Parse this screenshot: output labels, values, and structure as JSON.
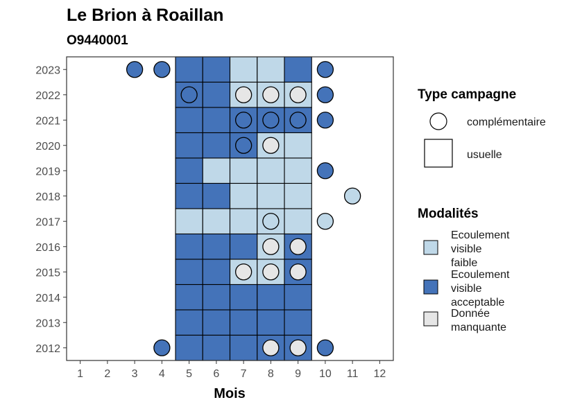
{
  "chart_data": {
    "type": "heatmap",
    "title": "Le Brion à Roaillan",
    "subtitle": "O9440001",
    "xlabel": "Mois",
    "ylabel": "",
    "x_ticks": [
      1,
      2,
      3,
      4,
      5,
      6,
      7,
      8,
      9,
      10,
      11,
      12
    ],
    "y_ticks": [
      2012,
      2013,
      2014,
      2015,
      2016,
      2017,
      2018,
      2019,
      2020,
      2021,
      2022,
      2023
    ],
    "xlim": [
      0.5,
      12.5
    ],
    "ylim": [
      2011.5,
      2023.5
    ],
    "colors": {
      "faible": "#bfd8e8",
      "acceptable": "#4473b9",
      "manquante": "#e6e6e6",
      "outline": "#000000",
      "panel_border": "#333333"
    },
    "legend_type": {
      "title": "Type campagne",
      "items": [
        {
          "label": "complémentaire",
          "shape": "circle"
        },
        {
          "label": "usuelle",
          "shape": "square"
        }
      ]
    },
    "legend_modalites": {
      "title": "Modalités",
      "items": [
        {
          "key": "faible",
          "label_lines": [
            "Ecoulement",
            "visible",
            "faible"
          ]
        },
        {
          "key": "acceptable",
          "label_lines": [
            "Ecoulement",
            "visible",
            "acceptable"
          ]
        },
        {
          "key": "manquante",
          "label_lines": [
            "Donnée",
            "manquante"
          ]
        }
      ]
    },
    "usuelle": [
      {
        "year": 2023,
        "months": [
          5,
          6,
          7,
          8,
          9
        ],
        "values": [
          "acceptable",
          "acceptable",
          "faible",
          "faible",
          "acceptable"
        ]
      },
      {
        "year": 2022,
        "months": [
          5,
          6,
          7,
          8,
          9
        ],
        "values": [
          "acceptable",
          "acceptable",
          "faible",
          "faible",
          "faible"
        ]
      },
      {
        "year": 2021,
        "months": [
          5,
          6,
          7,
          8,
          9
        ],
        "values": [
          "acceptable",
          "acceptable",
          "acceptable",
          "acceptable",
          "acceptable"
        ]
      },
      {
        "year": 2020,
        "months": [
          5,
          6,
          7,
          8,
          9
        ],
        "values": [
          "acceptable",
          "acceptable",
          "acceptable",
          "faible",
          "faible"
        ]
      },
      {
        "year": 2019,
        "months": [
          5,
          6,
          7,
          8,
          9
        ],
        "values": [
          "acceptable",
          "faible",
          "faible",
          "faible",
          "faible"
        ]
      },
      {
        "year": 2018,
        "months": [
          5,
          6,
          7,
          8,
          9
        ],
        "values": [
          "acceptable",
          "acceptable",
          "faible",
          "faible",
          "faible"
        ]
      },
      {
        "year": 2017,
        "months": [
          5,
          6,
          7,
          8,
          9
        ],
        "values": [
          "faible",
          "faible",
          "faible",
          "faible",
          "faible"
        ]
      },
      {
        "year": 2016,
        "months": [
          5,
          6,
          7,
          8,
          9
        ],
        "values": [
          "acceptable",
          "acceptable",
          "acceptable",
          "faible",
          "acceptable"
        ]
      },
      {
        "year": 2015,
        "months": [
          5,
          6,
          7,
          8,
          9
        ],
        "values": [
          "acceptable",
          "acceptable",
          "faible",
          "faible",
          "acceptable"
        ]
      },
      {
        "year": 2014,
        "months": [
          5,
          6,
          7,
          8,
          9
        ],
        "values": [
          "acceptable",
          "acceptable",
          "acceptable",
          "acceptable",
          "acceptable"
        ]
      },
      {
        "year": 2013,
        "months": [
          5,
          6,
          7,
          8,
          9
        ],
        "values": [
          "acceptable",
          "acceptable",
          "acceptable",
          "acceptable",
          "acceptable"
        ]
      },
      {
        "year": 2012,
        "months": [
          5,
          6,
          7,
          8,
          9
        ],
        "values": [
          "acceptable",
          "acceptable",
          "acceptable",
          "acceptable",
          "acceptable"
        ]
      }
    ],
    "complementaire": [
      {
        "year": 2023,
        "month": 3,
        "value": "acceptable"
      },
      {
        "year": 2023,
        "month": 4,
        "value": "acceptable"
      },
      {
        "year": 2023,
        "month": 10,
        "value": "acceptable"
      },
      {
        "year": 2022,
        "month": 5,
        "value": "acceptable"
      },
      {
        "year": 2022,
        "month": 7,
        "value": "manquante"
      },
      {
        "year": 2022,
        "month": 8,
        "value": "manquante"
      },
      {
        "year": 2022,
        "month": 9,
        "value": "manquante"
      },
      {
        "year": 2022,
        "month": 10,
        "value": "acceptable"
      },
      {
        "year": 2021,
        "month": 7,
        "value": "acceptable"
      },
      {
        "year": 2021,
        "month": 8,
        "value": "acceptable"
      },
      {
        "year": 2021,
        "month": 9,
        "value": "acceptable"
      },
      {
        "year": 2021,
        "month": 10,
        "value": "acceptable"
      },
      {
        "year": 2020,
        "month": 7,
        "value": "acceptable"
      },
      {
        "year": 2020,
        "month": 8,
        "value": "manquante"
      },
      {
        "year": 2019,
        "month": 10,
        "value": "acceptable"
      },
      {
        "year": 2018,
        "month": 11,
        "value": "faible"
      },
      {
        "year": 2017,
        "month": 8,
        "value": "faible"
      },
      {
        "year": 2017,
        "month": 10,
        "value": "faible"
      },
      {
        "year": 2016,
        "month": 8,
        "value": "manquante"
      },
      {
        "year": 2016,
        "month": 9,
        "value": "manquante"
      },
      {
        "year": 2015,
        "month": 7,
        "value": "manquante"
      },
      {
        "year": 2015,
        "month": 8,
        "value": "manquante"
      },
      {
        "year": 2015,
        "month": 9,
        "value": "manquante"
      },
      {
        "year": 2012,
        "month": 4,
        "value": "acceptable"
      },
      {
        "year": 2012,
        "month": 8,
        "value": "manquante"
      },
      {
        "year": 2012,
        "month": 9,
        "value": "manquante"
      },
      {
        "year": 2012,
        "month": 10,
        "value": "acceptable"
      }
    ]
  }
}
